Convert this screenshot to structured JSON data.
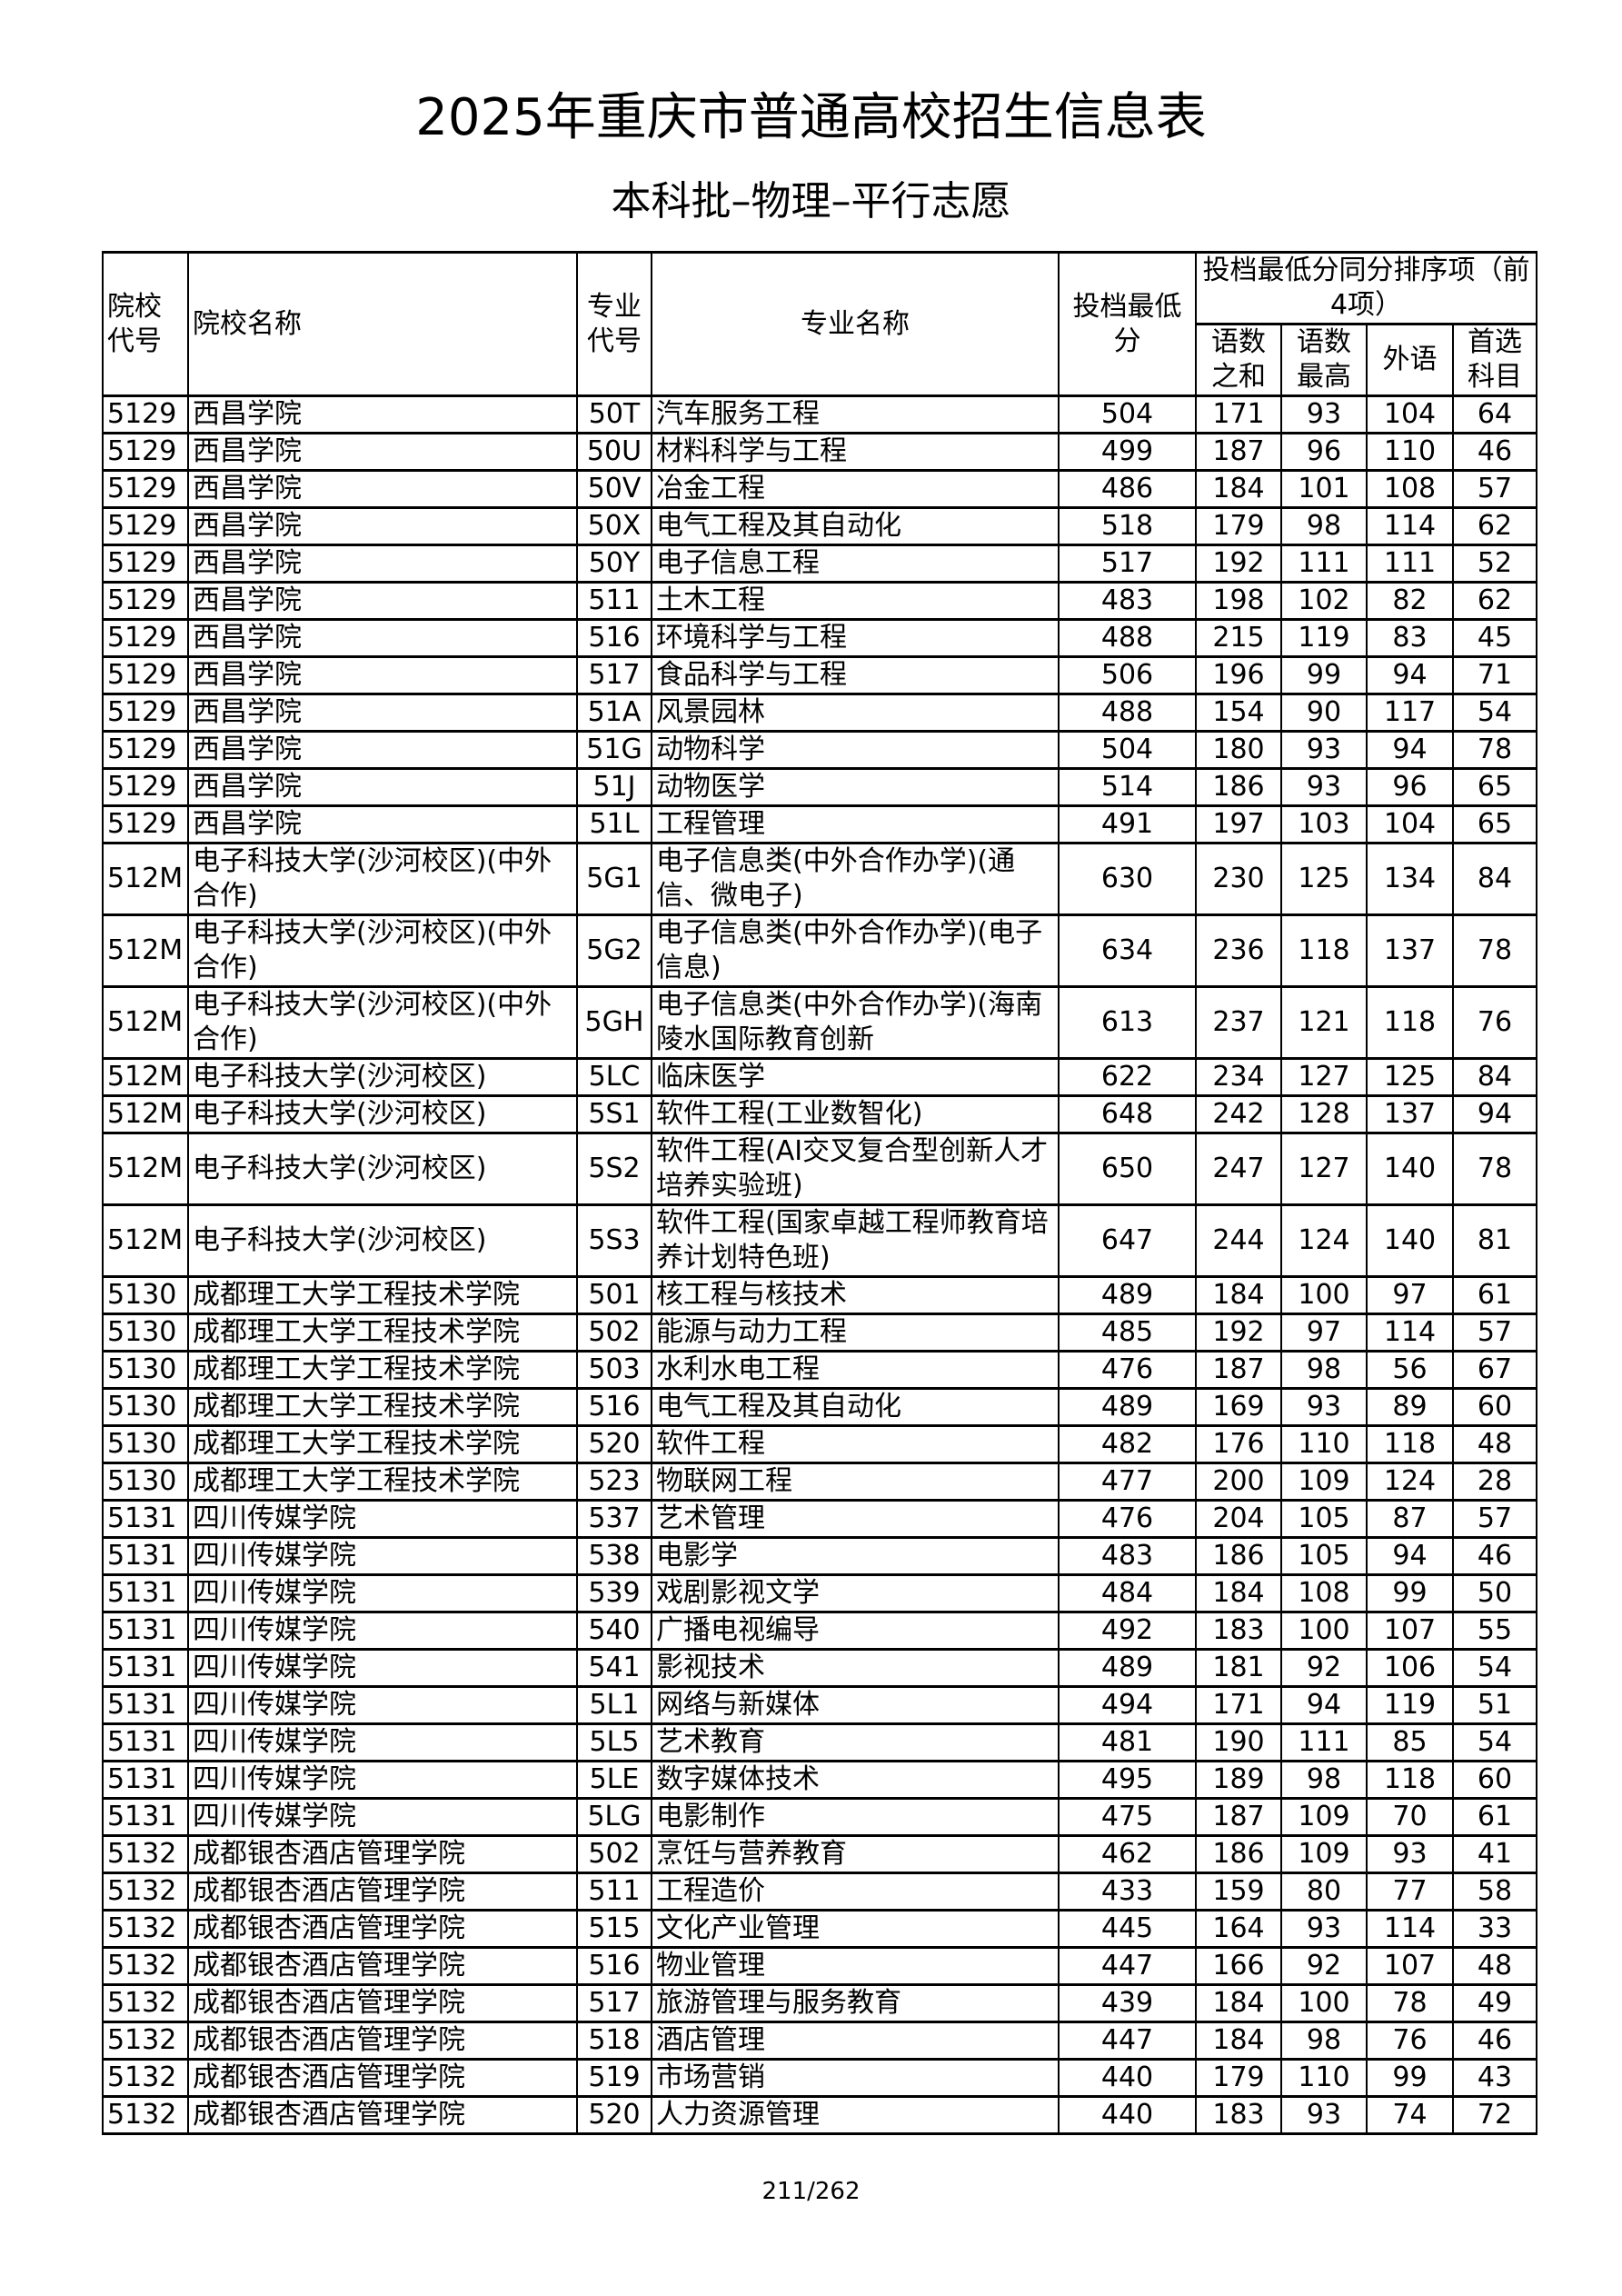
{
  "title": "2025年重庆市普通高校招生信息表",
  "subtitle": "本科批–物理–平行志愿",
  "headers": {
    "school_code": "院校代号",
    "school_name": "院校名称",
    "major_code": "专业代号",
    "major_name": "专业名称",
    "min_score": "投档最低分",
    "tiebreak_group": "投档最低分同分排序项（前4项）",
    "chi_math_sum": "语数之和",
    "chi_math_max": "语数最高",
    "foreign_lang": "外语",
    "first_subject": "首选科目"
  },
  "rows": [
    [
      "5129",
      "西昌学院",
      "50T",
      "汽车服务工程",
      "504",
      "171",
      "93",
      "104",
      "64"
    ],
    [
      "5129",
      "西昌学院",
      "50U",
      "材料科学与工程",
      "499",
      "187",
      "96",
      "110",
      "46"
    ],
    [
      "5129",
      "西昌学院",
      "50V",
      "冶金工程",
      "486",
      "184",
      "101",
      "108",
      "57"
    ],
    [
      "5129",
      "西昌学院",
      "50X",
      "电气工程及其自动化",
      "518",
      "179",
      "98",
      "114",
      "62"
    ],
    [
      "5129",
      "西昌学院",
      "50Y",
      "电子信息工程",
      "517",
      "192",
      "111",
      "111",
      "52"
    ],
    [
      "5129",
      "西昌学院",
      "511",
      "土木工程",
      "483",
      "198",
      "102",
      "82",
      "62"
    ],
    [
      "5129",
      "西昌学院",
      "516",
      "环境科学与工程",
      "488",
      "215",
      "119",
      "83",
      "45"
    ],
    [
      "5129",
      "西昌学院",
      "517",
      "食品科学与工程",
      "506",
      "196",
      "99",
      "94",
      "71"
    ],
    [
      "5129",
      "西昌学院",
      "51A",
      "风景园林",
      "488",
      "154",
      "90",
      "117",
      "54"
    ],
    [
      "5129",
      "西昌学院",
      "51G",
      "动物科学",
      "504",
      "180",
      "93",
      "94",
      "78"
    ],
    [
      "5129",
      "西昌学院",
      "51J",
      "动物医学",
      "514",
      "186",
      "93",
      "96",
      "65"
    ],
    [
      "5129",
      "西昌学院",
      "51L",
      "工程管理",
      "491",
      "197",
      "103",
      "104",
      "65"
    ],
    [
      "512M",
      "电子科技大学(沙河校区)(中外合作)",
      "5G1",
      "电子信息类(中外合作办学)(通信、微电子)",
      "630",
      "230",
      "125",
      "134",
      "84"
    ],
    [
      "512M",
      "电子科技大学(沙河校区)(中外合作)",
      "5G2",
      "电子信息类(中外合作办学)(电子信息)",
      "634",
      "236",
      "118",
      "137",
      "78"
    ],
    [
      "512M",
      "电子科技大学(沙河校区)(中外合作)",
      "5GH",
      "电子信息类(中外合作办学)(海南陵水国际教育创新",
      "613",
      "237",
      "121",
      "118",
      "76"
    ],
    [
      "512M",
      "电子科技大学(沙河校区)",
      "5LC",
      "临床医学",
      "622",
      "234",
      "127",
      "125",
      "84"
    ],
    [
      "512M",
      "电子科技大学(沙河校区)",
      "5S1",
      "软件工程(工业数智化)",
      "648",
      "242",
      "128",
      "137",
      "94"
    ],
    [
      "512M",
      "电子科技大学(沙河校区)",
      "5S2",
      "软件工程(AI交叉复合型创新人才培养实验班)",
      "650",
      "247",
      "127",
      "140",
      "78"
    ],
    [
      "512M",
      "电子科技大学(沙河校区)",
      "5S3",
      "软件工程(国家卓越工程师教育培养计划特色班)",
      "647",
      "244",
      "124",
      "140",
      "81"
    ],
    [
      "5130",
      "成都理工大学工程技术学院",
      "501",
      "核工程与核技术",
      "489",
      "184",
      "100",
      "97",
      "61"
    ],
    [
      "5130",
      "成都理工大学工程技术学院",
      "502",
      "能源与动力工程",
      "485",
      "192",
      "97",
      "114",
      "57"
    ],
    [
      "5130",
      "成都理工大学工程技术学院",
      "503",
      "水利水电工程",
      "476",
      "187",
      "98",
      "56",
      "67"
    ],
    [
      "5130",
      "成都理工大学工程技术学院",
      "516",
      "电气工程及其自动化",
      "489",
      "169",
      "93",
      "89",
      "60"
    ],
    [
      "5130",
      "成都理工大学工程技术学院",
      "520",
      "软件工程",
      "482",
      "176",
      "110",
      "118",
      "48"
    ],
    [
      "5130",
      "成都理工大学工程技术学院",
      "523",
      "物联网工程",
      "477",
      "200",
      "109",
      "124",
      "28"
    ],
    [
      "5131",
      "四川传媒学院",
      "537",
      "艺术管理",
      "476",
      "204",
      "105",
      "87",
      "57"
    ],
    [
      "5131",
      "四川传媒学院",
      "538",
      "电影学",
      "483",
      "186",
      "105",
      "94",
      "46"
    ],
    [
      "5131",
      "四川传媒学院",
      "539",
      "戏剧影视文学",
      "484",
      "184",
      "108",
      "99",
      "50"
    ],
    [
      "5131",
      "四川传媒学院",
      "540",
      "广播电视编导",
      "492",
      "183",
      "100",
      "107",
      "55"
    ],
    [
      "5131",
      "四川传媒学院",
      "541",
      "影视技术",
      "489",
      "181",
      "92",
      "106",
      "54"
    ],
    [
      "5131",
      "四川传媒学院",
      "5L1",
      "网络与新媒体",
      "494",
      "171",
      "94",
      "119",
      "51"
    ],
    [
      "5131",
      "四川传媒学院",
      "5L5",
      "艺术教育",
      "481",
      "190",
      "111",
      "85",
      "54"
    ],
    [
      "5131",
      "四川传媒学院",
      "5LE",
      "数字媒体技术",
      "495",
      "189",
      "98",
      "118",
      "60"
    ],
    [
      "5131",
      "四川传媒学院",
      "5LG",
      "电影制作",
      "475",
      "187",
      "109",
      "70",
      "61"
    ],
    [
      "5132",
      "成都银杏酒店管理学院",
      "502",
      "烹饪与营养教育",
      "462",
      "186",
      "109",
      "93",
      "41"
    ],
    [
      "5132",
      "成都银杏酒店管理学院",
      "511",
      "工程造价",
      "433",
      "159",
      "80",
      "77",
      "58"
    ],
    [
      "5132",
      "成都银杏酒店管理学院",
      "515",
      "文化产业管理",
      "445",
      "164",
      "93",
      "114",
      "33"
    ],
    [
      "5132",
      "成都银杏酒店管理学院",
      "516",
      "物业管理",
      "447",
      "166",
      "92",
      "107",
      "48"
    ],
    [
      "5132",
      "成都银杏酒店管理学院",
      "517",
      "旅游管理与服务教育",
      "439",
      "184",
      "100",
      "78",
      "49"
    ],
    [
      "5132",
      "成都银杏酒店管理学院",
      "518",
      "酒店管理",
      "447",
      "184",
      "98",
      "76",
      "46"
    ],
    [
      "5132",
      "成都银杏酒店管理学院",
      "519",
      "市场营销",
      "440",
      "179",
      "110",
      "99",
      "43"
    ],
    [
      "5132",
      "成都银杏酒店管理学院",
      "520",
      "人力资源管理",
      "440",
      "183",
      "93",
      "74",
      "72"
    ]
  ],
  "page_number": "211/262"
}
